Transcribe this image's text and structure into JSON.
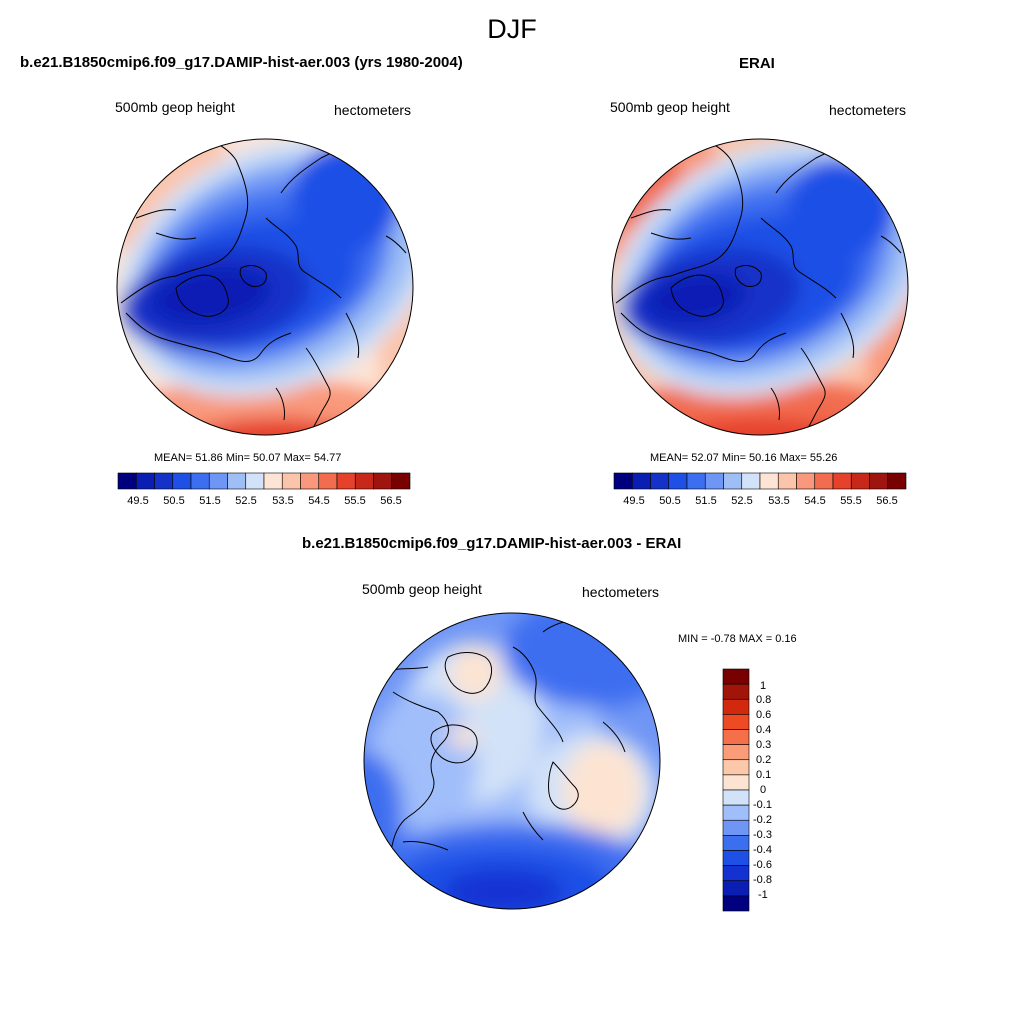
{
  "figure": {
    "title": "DJF"
  },
  "colors": {
    "panel_levels": [
      "#00007f",
      "#0a1eb4",
      "#1432c8",
      "#1e50e6",
      "#3c6ef0",
      "#6e96f5",
      "#9ebef5",
      "#d2e2f8",
      "#fde4d6",
      "#fcc4aa",
      "#f9987a",
      "#f26c50",
      "#e6412a",
      "#c8281a",
      "#a01410",
      "#780000"
    ],
    "diff_levels": [
      "#000080",
      "#0a1eb4",
      "#1432d2",
      "#1e50e6",
      "#3c6ef0",
      "#7096f5",
      "#a0befa",
      "#d2e2f8",
      "#fde4d2",
      "#fcc8aa",
      "#fa9c78",
      "#f57048",
      "#ee4a24",
      "#d2280e",
      "#a0140a",
      "#780000"
    ]
  },
  "panels": [
    {
      "title": "b.e21.B1850cmip6.f09_g17.DAMIP-hist-aer.003 (yrs 1980-2004)",
      "left_label": "500mb geop height",
      "right_label": "hectometers",
      "stats": "MEAN=  51.86  Min=  50.07  Max=  54.77",
      "colorbar_labels": [
        "49.5",
        "50.5",
        "51.5",
        "52.5",
        "53.5",
        "54.5",
        "55.5",
        "56.5"
      ]
    },
    {
      "title": "ERAI",
      "left_label": "500mb geop height",
      "right_label": "hectometers",
      "stats": "MEAN=  52.07  Min=  50.16  Max=  55.26",
      "colorbar_labels": [
        "49.5",
        "50.5",
        "51.5",
        "52.5",
        "53.5",
        "54.5",
        "55.5",
        "56.5"
      ]
    }
  ],
  "diff_panel": {
    "title": "b.e21.B1850cmip6.f09_g17.DAMIP-hist-aer.003 - ERAI",
    "left_label": "500mb geop height",
    "right_label": "hectometers",
    "stats": "MIN =  -0.78 MAX =   0.16",
    "colorbar_labels": [
      "1",
      "0.8",
      "0.6",
      "0.4",
      "0.3",
      "0.2",
      "0.1",
      "0",
      "-0.1",
      "-0.2",
      "-0.3",
      "-0.4",
      "-0.6",
      "-0.8",
      "-1"
    ]
  },
  "chart_data": [
    {
      "type": "heatmap",
      "title": "b.e21.B1850cmip6.f09_g17.DAMIP-hist-aer.003 (yrs 1980-2004)",
      "variable": "500mb geop height",
      "units": "hectometers",
      "season": "DJF",
      "mean": 51.86,
      "min": 50.07,
      "max": 54.77,
      "levels": [
        49.5,
        50,
        50.5,
        51,
        51.5,
        52,
        52.5,
        53,
        53.5,
        54,
        54.5,
        55,
        55.5,
        56,
        56.5
      ]
    },
    {
      "type": "heatmap",
      "title": "ERAI",
      "variable": "500mb geop height",
      "units": "hectometers",
      "season": "DJF",
      "mean": 52.07,
      "min": 50.16,
      "max": 55.26,
      "levels": [
        49.5,
        50,
        50.5,
        51,
        51.5,
        52,
        52.5,
        53,
        53.5,
        54,
        54.5,
        55,
        55.5,
        56,
        56.5
      ]
    },
    {
      "type": "heatmap",
      "title": "b.e21.B1850cmip6.f09_g17.DAMIP-hist-aer.003 - ERAI",
      "variable": "500mb geop height",
      "units": "hectometers",
      "season": "DJF",
      "min": -0.78,
      "max": 0.16,
      "levels": [
        -1,
        -0.8,
        -0.6,
        -0.4,
        -0.3,
        -0.2,
        -0.1,
        0,
        0.1,
        0.2,
        0.3,
        0.4,
        0.6,
        0.8,
        1
      ]
    }
  ]
}
